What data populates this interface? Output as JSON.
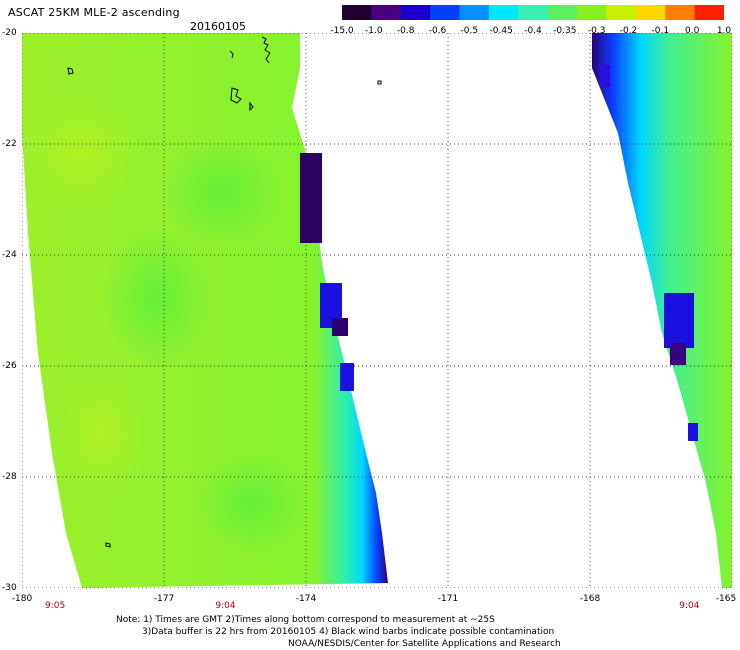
{
  "header": {
    "title": "ASCAT 25KM MLE-2 ascending",
    "date": "20160105"
  },
  "colorbar": {
    "labels": [
      "-15.0",
      "-1.0",
      "-0.8",
      "-0.6",
      "-0.5",
      "-0.45",
      "-0.4",
      "-0.35",
      "-0.3",
      "-0.2",
      "-0.1",
      "0.0",
      "1.0"
    ],
    "colors": [
      "#200030",
      "#4b0082",
      "#1a00cc",
      "#0040ff",
      "#0090ff",
      "#00e8ff",
      "#38f0b0",
      "#5cf060",
      "#88f020",
      "#c8f000",
      "#ffd800",
      "#ff8000",
      "#ff2000"
    ]
  },
  "map": {
    "lat_labels": [
      "-20",
      "-22",
      "-24",
      "-26",
      "-28",
      "-30"
    ],
    "lat_values": [
      -20,
      -22,
      -24,
      -26,
      -28,
      -30
    ],
    "lon_labels": [
      "-180",
      "-177",
      "-174",
      "-171",
      "-168",
      "-165"
    ],
    "lon_values": [
      -180,
      -177,
      -174,
      -171,
      -168,
      -165
    ],
    "bottom_times": [
      "9:05",
      "9:04",
      "9:04"
    ],
    "bottom_time_lons": [
      -179.3,
      -175.7,
      -165.9
    ],
    "swath_fill": "#9cf02a",
    "gridline_style": "dotted"
  },
  "notes": {
    "line1": "Note: 1) Times are GMT 2)Times along bottom correspond to measurement at ~25S",
    "line2": "3)Data buffer is 22 hrs from 20160105 4) Black wind barbs indicate possible contamination",
    "line3": "NOAA/NESDIS/Center for Satellite Applications and Research"
  }
}
